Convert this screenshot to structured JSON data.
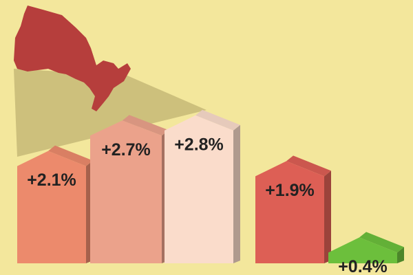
{
  "chart_data": {
    "type": "bar",
    "values": [
      2.1,
      2.7,
      2.8,
      1.9,
      0.4
    ],
    "value_labels": [
      "+2.1%",
      "+2.7%",
      "+2.8%",
      "+1.9%",
      "+0.4%"
    ],
    "colors": [
      "#ec8a6c",
      "#eba28b",
      "#fadccb",
      "#dd5f55",
      "#6cbf3c"
    ]
  }
}
